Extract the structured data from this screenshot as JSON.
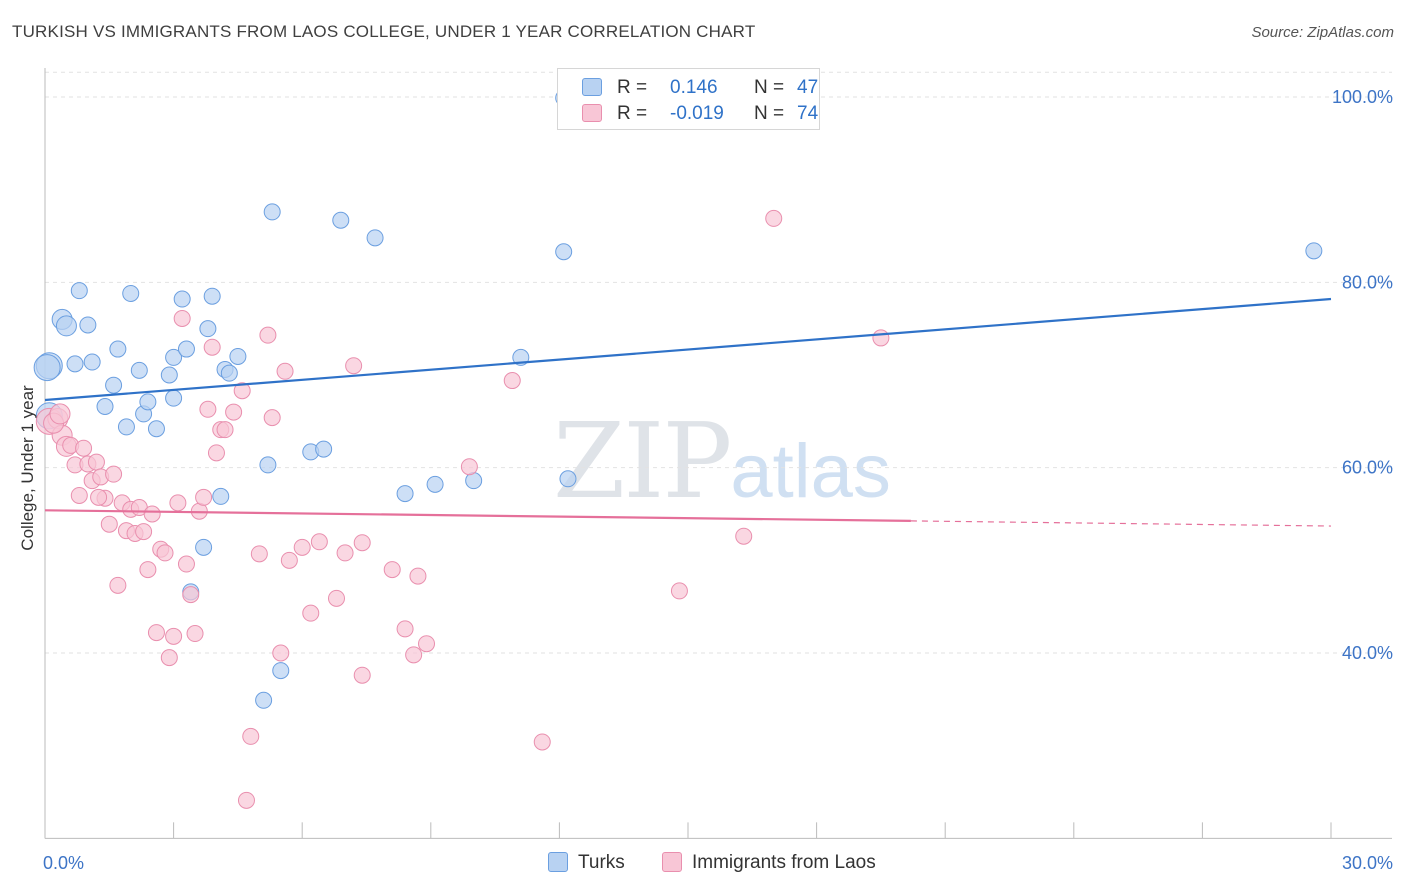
{
  "title": "TURKISH VS IMMIGRANTS FROM LAOS COLLEGE, UNDER 1 YEAR CORRELATION CHART",
  "source": "Source: ZipAtlas.com",
  "watermark": {
    "zip": "ZIP",
    "atlas": "atlas"
  },
  "legend": {
    "rows": [
      {
        "r_label": "R =",
        "r_value": "0.146",
        "n_label": "N =",
        "n_value": "47"
      },
      {
        "r_label": "R =",
        "r_value": "-0.019",
        "n_label": "N =",
        "n_value": "74"
      }
    ]
  },
  "colors": {
    "turks_fill": "#b8d2f2",
    "turks_stroke": "#6b9fe0",
    "turks_line": "#2f72c8",
    "laos_fill": "#f8c6d6",
    "laos_stroke": "#e98fae",
    "laos_line": "#e5709a",
    "tick_text": "#3d74c6",
    "grid": "#e2e2e2"
  },
  "chart_data": {
    "type": "scatter",
    "title": "TURKISH VS IMMIGRANTS FROM LAOS COLLEGE, UNDER 1 YEAR CORRELATION CHART",
    "xlabel": "",
    "ylabel": "College, Under 1 year",
    "xlim": [
      0,
      30
    ],
    "ylim": [
      20,
      103
    ],
    "x_tick_labels": [
      "0.0%",
      "30.0%"
    ],
    "y_tick_labels": [
      "40.0%",
      "60.0%",
      "80.0%",
      "100.0%"
    ],
    "y_ticks": [
      40,
      60,
      80,
      100
    ],
    "grid": true,
    "legend_position": "top-center",
    "series": [
      {
        "name": "Turks",
        "color": "#6b9fe0",
        "trend": {
          "x": [
            0,
            30
          ],
          "y": [
            67.3,
            78.2
          ],
          "dashed_from": null
        },
        "points": [
          [
            0.1,
            65.6
          ],
          [
            0.1,
            71.0
          ],
          [
            0.4,
            76.0
          ],
          [
            0.5,
            75.3
          ],
          [
            0.7,
            71.2
          ],
          [
            0.8,
            79.1
          ],
          [
            1.0,
            75.4
          ],
          [
            1.1,
            71.4
          ],
          [
            1.4,
            66.6
          ],
          [
            1.6,
            68.9
          ],
          [
            1.7,
            72.8
          ],
          [
            1.9,
            64.4
          ],
          [
            2.0,
            78.8
          ],
          [
            2.2,
            70.5
          ],
          [
            2.3,
            65.8
          ],
          [
            2.4,
            67.1
          ],
          [
            2.6,
            64.2
          ],
          [
            2.9,
            70.0
          ],
          [
            3.0,
            71.9
          ],
          [
            3.0,
            67.5
          ],
          [
            3.2,
            78.2
          ],
          [
            3.3,
            72.8
          ],
          [
            3.8,
            75.0
          ],
          [
            3.9,
            78.5
          ],
          [
            4.1,
            56.9
          ],
          [
            4.2,
            70.6
          ],
          [
            4.3,
            70.2
          ],
          [
            4.5,
            72.0
          ],
          [
            3.7,
            51.4
          ],
          [
            3.4,
            46.6
          ],
          [
            5.2,
            60.3
          ],
          [
            5.3,
            87.6
          ],
          [
            5.5,
            38.1
          ],
          [
            5.1,
            34.9
          ],
          [
            6.2,
            61.7
          ],
          [
            6.5,
            62.0
          ],
          [
            6.9,
            86.7
          ],
          [
            7.7,
            84.8
          ],
          [
            8.4,
            57.2
          ],
          [
            9.1,
            58.2
          ],
          [
            10.0,
            58.6
          ],
          [
            11.1,
            71.9
          ],
          [
            12.1,
            83.3
          ],
          [
            12.2,
            58.8
          ],
          [
            12.1,
            99.9
          ],
          [
            29.6,
            83.4
          ],
          [
            0.05,
            70.8
          ]
        ],
        "sizes_note": "larger markers near x=0"
      },
      {
        "name": "Immigrants from Laos",
        "color": "#e98fae",
        "trend": {
          "x": [
            0,
            30
          ],
          "y": [
            55.4,
            53.7
          ],
          "dashed_from": 20.2
        },
        "points": [
          [
            0.1,
            65.0
          ],
          [
            0.3,
            65.3
          ],
          [
            0.4,
            63.5
          ],
          [
            0.5,
            62.3
          ],
          [
            0.6,
            62.4
          ],
          [
            0.7,
            60.3
          ],
          [
            0.8,
            57.0
          ],
          [
            0.9,
            62.1
          ],
          [
            1.0,
            60.4
          ],
          [
            1.1,
            58.6
          ],
          [
            1.2,
            60.6
          ],
          [
            1.3,
            59.0
          ],
          [
            1.4,
            56.7
          ],
          [
            1.5,
            53.9
          ],
          [
            1.6,
            59.3
          ],
          [
            1.7,
            47.3
          ],
          [
            1.8,
            56.2
          ],
          [
            1.9,
            53.2
          ],
          [
            2.0,
            55.5
          ],
          [
            2.1,
            52.9
          ],
          [
            2.2,
            55.7
          ],
          [
            2.3,
            53.1
          ],
          [
            2.4,
            49.0
          ],
          [
            2.5,
            55.0
          ],
          [
            2.6,
            42.2
          ],
          [
            2.7,
            51.2
          ],
          [
            2.8,
            50.8
          ],
          [
            2.9,
            39.5
          ],
          [
            3.0,
            41.8
          ],
          [
            3.1,
            56.2
          ],
          [
            3.2,
            76.1
          ],
          [
            3.3,
            49.6
          ],
          [
            3.4,
            46.3
          ],
          [
            3.5,
            42.1
          ],
          [
            3.6,
            55.3
          ],
          [
            3.7,
            56.8
          ],
          [
            3.8,
            66.3
          ],
          [
            3.9,
            73.0
          ],
          [
            4.0,
            61.6
          ],
          [
            4.1,
            64.1
          ],
          [
            4.2,
            64.1
          ],
          [
            4.4,
            66.0
          ],
          [
            4.6,
            68.3
          ],
          [
            4.8,
            31.0
          ],
          [
            4.7,
            24.1
          ],
          [
            5.0,
            50.7
          ],
          [
            5.2,
            74.3
          ],
          [
            5.3,
            65.4
          ],
          [
            5.5,
            40.0
          ],
          [
            5.6,
            70.4
          ],
          [
            5.7,
            50.0
          ],
          [
            6.0,
            51.4
          ],
          [
            6.2,
            44.3
          ],
          [
            6.4,
            52.0
          ],
          [
            6.8,
            45.9
          ],
          [
            7.0,
            50.8
          ],
          [
            7.2,
            71.0
          ],
          [
            7.4,
            51.9
          ],
          [
            7.4,
            37.6
          ],
          [
            8.1,
            49.0
          ],
          [
            8.4,
            42.6
          ],
          [
            8.6,
            39.8
          ],
          [
            8.7,
            48.3
          ],
          [
            8.9,
            41.0
          ],
          [
            9.9,
            60.1
          ],
          [
            10.9,
            69.4
          ],
          [
            11.6,
            30.4
          ],
          [
            14.8,
            46.7
          ],
          [
            16.3,
            52.6
          ],
          [
            17.0,
            86.9
          ],
          [
            19.5,
            74.0
          ],
          [
            0.2,
            64.8
          ],
          [
            0.35,
            65.8
          ],
          [
            1.25,
            56.8
          ]
        ]
      }
    ]
  }
}
